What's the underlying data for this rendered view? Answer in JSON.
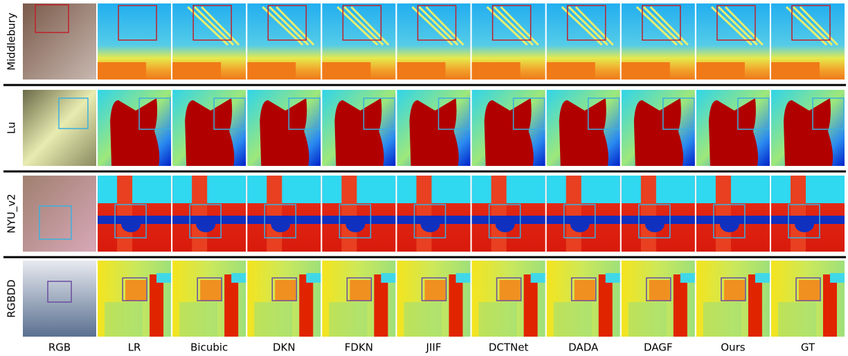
{
  "rows": [
    {
      "label": "Middlebury"
    },
    {
      "label": "Lu"
    },
    {
      "label": "NYU_v2"
    },
    {
      "label": "RGBDD"
    }
  ],
  "columns": [
    "RGB",
    "LR",
    "Bicubic",
    "DKN",
    "FDKN",
    "JIIF",
    "DCTNet",
    "DADA",
    "DAGF",
    "Ours",
    "GT"
  ]
}
